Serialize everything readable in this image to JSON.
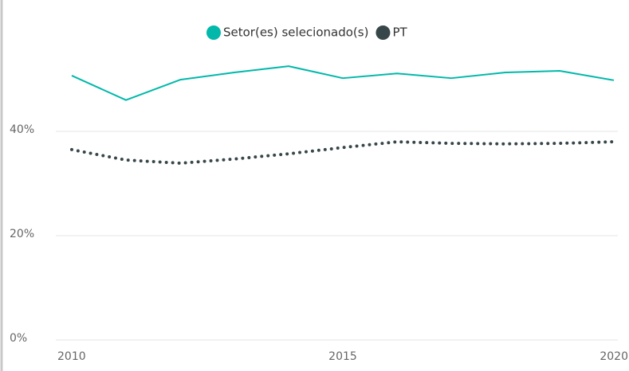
{
  "chart_data": {
    "type": "line",
    "x": [
      2010,
      2011,
      2012,
      2013,
      2014,
      2015,
      2016,
      2017,
      2018,
      2019,
      2020
    ],
    "series": [
      {
        "name": "Setor(es) selecionado(s)",
        "color": "#01b8aa",
        "dash": "solid",
        "values": [
          50.7,
          46.0,
          49.9,
          51.3,
          52.5,
          50.2,
          51.1,
          50.2,
          51.3,
          51.6,
          49.8
        ]
      },
      {
        "name": "PT",
        "color": "#374649",
        "dash": "dotted",
        "values": [
          36.5,
          34.5,
          33.9,
          34.7,
          35.7,
          36.9,
          38.0,
          37.7,
          37.6,
          37.7,
          38.0
        ]
      }
    ],
    "xlim": [
      2010,
      2020
    ],
    "xticks": [
      2010,
      2015,
      2020
    ],
    "ylim": [
      0,
      60
    ],
    "yticks": [
      {
        "value": 0,
        "label": "0%"
      },
      {
        "value": 20,
        "label": "20%"
      },
      {
        "value": 40,
        "label": "40%"
      }
    ],
    "grid": true,
    "legend": "top"
  }
}
